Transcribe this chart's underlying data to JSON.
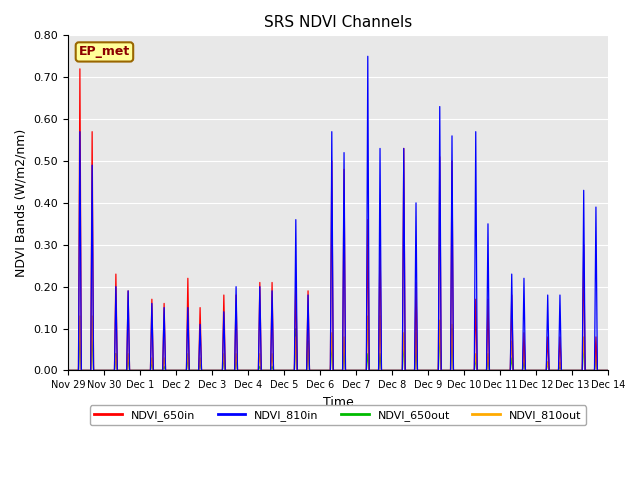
{
  "title": "SRS NDVI Channels",
  "xlabel": "Time",
  "ylabel": "NDVI Bands (W/m2/nm)",
  "ylim": [
    0.0,
    0.8
  ],
  "yticks": [
    0.0,
    0.1,
    0.2,
    0.3,
    0.4,
    0.5,
    0.6,
    0.7,
    0.8
  ],
  "background_color": "#e8e8e8",
  "annotation_text": "EP_met",
  "legend_labels": [
    "NDVI_650in",
    "NDVI_810in",
    "NDVI_650out",
    "NDVI_810out"
  ],
  "legend_colors": [
    "#ff0000",
    "#0000ff",
    "#00bb00",
    "#ffaa00"
  ],
  "x_tick_labels": [
    "Nov 29",
    "Nov 30",
    "Dec 1",
    "Dec 2",
    "Dec 3",
    "Dec 4",
    "Dec 5",
    "Dec 6",
    "Dec 7",
    "Dec 8",
    "Dec 9",
    "Dec 10",
    "Dec 11",
    "Dec 12",
    "Dec 13",
    "Dec 14"
  ],
  "two_peaks_per_day": {
    "NDVI_650in": {
      "peak1": [
        0.72,
        0.23,
        0.17,
        0.22,
        0.18,
        0.21,
        0.22,
        0.5,
        0.36,
        0.53,
        0.51,
        0.17,
        0.18,
        0.08,
        0.3,
        0.0
      ],
      "peak2": [
        0.57,
        0.19,
        0.16,
        0.15,
        0.18,
        0.21,
        0.19,
        0.48,
        0.32,
        0.21,
        0.5,
        0.17,
        0.09,
        0.08,
        0.08,
        0.0
      ]
    },
    "NDVI_810in": {
      "peak1": [
        0.57,
        0.2,
        0.16,
        0.15,
        0.14,
        0.2,
        0.36,
        0.57,
        0.75,
        0.53,
        0.63,
        0.57,
        0.23,
        0.18,
        0.43,
        0.0
      ],
      "peak2": [
        0.49,
        0.19,
        0.15,
        0.11,
        0.2,
        0.19,
        0.18,
        0.52,
        0.53,
        0.4,
        0.56,
        0.35,
        0.22,
        0.18,
        0.39,
        0.0
      ]
    },
    "NDVI_650out": {
      "peak1": [
        0.09,
        0.04,
        0.02,
        0.03,
        0.03,
        0.01,
        0.1,
        0.07,
        0.04,
        0.07,
        0.1,
        0.03,
        0.03,
        0.02,
        0.07,
        0.0
      ],
      "peak2": [
        0.09,
        0.03,
        0.01,
        0.02,
        0.03,
        0.01,
        0.07,
        0.06,
        0.04,
        0.06,
        0.1,
        0.03,
        0.02,
        0.01,
        0.04,
        0.0
      ]
    },
    "NDVI_810out": {
      "peak1": [
        0.13,
        0.04,
        0.03,
        0.04,
        0.04,
        0.04,
        0.08,
        0.09,
        0.13,
        0.09,
        0.12,
        0.04,
        0.07,
        0.02,
        0.08,
        0.0
      ],
      "peak2": [
        0.13,
        0.04,
        0.03,
        0.03,
        0.04,
        0.04,
        0.07,
        0.08,
        0.13,
        0.09,
        0.11,
        0.04,
        0.05,
        0.02,
        0.05,
        0.0
      ]
    }
  }
}
